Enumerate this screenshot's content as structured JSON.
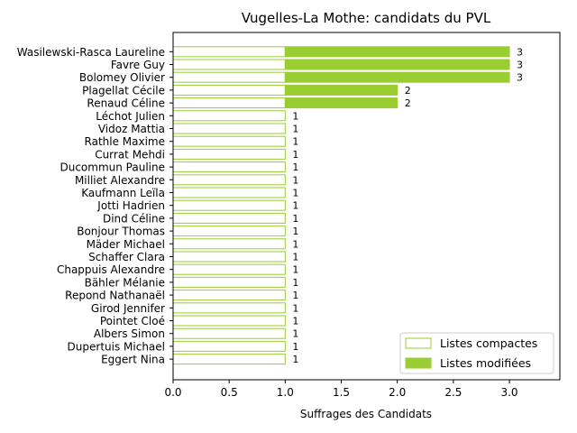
{
  "chart_data": {
    "type": "bar",
    "orientation": "horizontal",
    "stacked": true,
    "title": "Vugelles-La Mothe: candidats du PVL",
    "xlabel": "Suffrages des Candidats",
    "ylabel": "",
    "xlim": [
      0,
      3.45
    ],
    "xticks": [
      "0.0",
      "0.5",
      "1.0",
      "1.5",
      "2.0",
      "2.5",
      "3.0"
    ],
    "legend_position": "lower-right",
    "categories": [
      "Wasilewski-Rasca Laureline",
      "Favre Guy",
      "Bolomey Olivier",
      "Plagellat Cécile",
      "Renaud Céline",
      "Léchot Julien",
      "Vidoz Mattia",
      "Rathle Maxime",
      "Currat Mehdi",
      "Ducommun Pauline",
      "Milliet Alexandre",
      "Kaufmann Leïla",
      "Jotti Hadrien",
      "Dind Céline",
      "Bonjour Thomas",
      "Mäder Michael",
      "Schaffer Clara",
      "Chappuis Alexandre",
      "Bähler Mélanie",
      "Repond Nathanaël",
      "Girod Jennifer",
      "Pointet Cloé",
      "Albers Simon",
      "Dupertuis Michael",
      "Eggert Nina"
    ],
    "series": [
      {
        "name": "Listes compactes",
        "color": "#9acd32",
        "style": "outline",
        "values": [
          1,
          1,
          1,
          1,
          1,
          1,
          1,
          1,
          1,
          1,
          1,
          1,
          1,
          1,
          1,
          1,
          1,
          1,
          1,
          1,
          1,
          1,
          1,
          1,
          1
        ]
      },
      {
        "name": "Listes modifiées",
        "color": "#9acd32",
        "style": "filled",
        "values": [
          2,
          2,
          2,
          1,
          1,
          0,
          0,
          0,
          0,
          0,
          0,
          0,
          0,
          0,
          0,
          0,
          0,
          0,
          0,
          0,
          0,
          0,
          0,
          0,
          0
        ]
      }
    ],
    "totals": [
      "3",
      "3",
      "3",
      "2",
      "2",
      "1",
      "1",
      "1",
      "1",
      "1",
      "1",
      "1",
      "1",
      "1",
      "1",
      "1",
      "1",
      "1",
      "1",
      "1",
      "1",
      "1",
      "1",
      "1",
      "1"
    ]
  }
}
